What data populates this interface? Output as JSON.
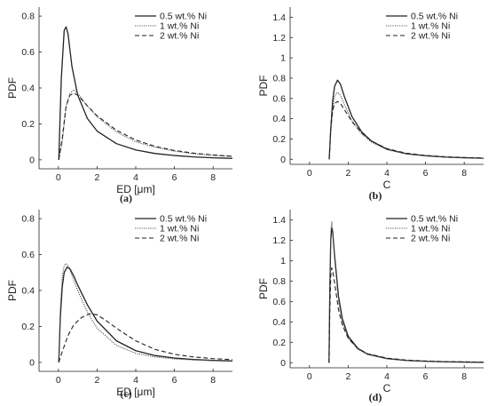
{
  "chart_data": [
    {
      "type": "line",
      "panel_label": "(a)",
      "xlabel": "ED [μm]",
      "ylabel": "PDF",
      "xlim": [
        -1,
        9
      ],
      "ylim": [
        -0.05,
        0.85
      ],
      "xticks": [
        0,
        2,
        4,
        6,
        8
      ],
      "yticks": [
        0,
        0.2,
        0.4,
        0.6,
        0.8
      ],
      "ytick_labels": [
        "0",
        "0.2",
        "0.4",
        "0.6",
        "0.8"
      ],
      "grid": false,
      "legend_position": "top-right",
      "series": [
        {
          "name": "0.5 wt.% Ni",
          "style": "solid",
          "x": [
            0.02,
            0.15,
            0.3,
            0.4,
            0.5,
            0.7,
            1.0,
            1.5,
            2,
            3,
            4,
            5,
            6,
            7,
            8,
            9
          ],
          "y": [
            0.0,
            0.45,
            0.72,
            0.74,
            0.7,
            0.52,
            0.36,
            0.23,
            0.16,
            0.09,
            0.055,
            0.035,
            0.024,
            0.016,
            0.011,
            0.008
          ]
        },
        {
          "name": "1 wt.% Ni",
          "style": "dotted",
          "x": [
            0.02,
            0.2,
            0.4,
            0.6,
            0.8,
            1.0,
            1.5,
            2,
            3,
            4,
            5,
            6,
            7,
            8,
            9
          ],
          "y": [
            0.0,
            0.1,
            0.3,
            0.37,
            0.39,
            0.37,
            0.3,
            0.24,
            0.155,
            0.1,
            0.07,
            0.048,
            0.034,
            0.025,
            0.018
          ]
        },
        {
          "name": "2 wt.% Ni",
          "style": "dashed",
          "x": [
            0.02,
            0.2,
            0.4,
            0.6,
            0.8,
            1.0,
            1.5,
            2,
            3,
            4,
            5,
            6,
            7,
            8,
            9
          ],
          "y": [
            0.0,
            0.12,
            0.3,
            0.36,
            0.37,
            0.36,
            0.3,
            0.245,
            0.165,
            0.11,
            0.075,
            0.052,
            0.037,
            0.027,
            0.02
          ]
        }
      ]
    },
    {
      "type": "line",
      "panel_label": "(b)",
      "xlabel": "C",
      "ylabel": "PDF",
      "xlim": [
        -1,
        9
      ],
      "ylim": [
        -0.05,
        1.5
      ],
      "xticks": [
        0,
        2,
        4,
        6,
        8
      ],
      "yticks": [
        0,
        0.2,
        0.4,
        0.6,
        0.8,
        1,
        1.2,
        1.4
      ],
      "ytick_labels": [
        "0",
        "0.2",
        "0.4",
        "0.6",
        "0.8",
        "1",
        "1.2",
        "1.4"
      ],
      "grid": false,
      "legend_position": "top-right",
      "series": [
        {
          "name": "0.5 wt.% Ni",
          "style": "solid",
          "x": [
            1.02,
            1.1,
            1.2,
            1.3,
            1.45,
            1.6,
            1.8,
            2.2,
            2.7,
            3.2,
            4,
            5,
            6,
            7,
            8,
            9
          ],
          "y": [
            0.0,
            0.3,
            0.58,
            0.72,
            0.78,
            0.74,
            0.62,
            0.42,
            0.27,
            0.18,
            0.1,
            0.055,
            0.035,
            0.022,
            0.015,
            0.01
          ]
        },
        {
          "name": "1 wt.% Ni",
          "style": "dotted",
          "x": [
            1.02,
            1.1,
            1.2,
            1.3,
            1.45,
            1.6,
            1.8,
            2.2,
            2.7,
            3.2,
            4,
            5,
            6,
            7,
            8,
            9
          ],
          "y": [
            0.0,
            0.28,
            0.5,
            0.62,
            0.66,
            0.63,
            0.54,
            0.38,
            0.25,
            0.17,
            0.095,
            0.052,
            0.033,
            0.021,
            0.014,
            0.01
          ]
        },
        {
          "name": "2 wt.% Ni",
          "style": "dashed",
          "x": [
            1.02,
            1.1,
            1.2,
            1.3,
            1.45,
            1.6,
            1.8,
            2.2,
            2.7,
            3.2,
            4,
            5,
            6,
            7,
            8,
            9
          ],
          "y": [
            0.0,
            0.3,
            0.48,
            0.55,
            0.57,
            0.55,
            0.49,
            0.37,
            0.26,
            0.18,
            0.105,
            0.06,
            0.038,
            0.025,
            0.017,
            0.012
          ]
        }
      ]
    },
    {
      "type": "line",
      "panel_label": "(c)",
      "xlabel": "ED [μm]",
      "ylabel": "PDF",
      "xlim": [
        -1,
        9
      ],
      "ylim": [
        -0.05,
        0.85
      ],
      "xticks": [
        0,
        2,
        4,
        6,
        8
      ],
      "yticks": [
        0,
        0.2,
        0.4,
        0.6,
        0.8
      ],
      "ytick_labels": [
        "0",
        "0.2",
        "0.4",
        "0.6",
        "0.8"
      ],
      "grid": false,
      "legend_position": "top-right",
      "series": [
        {
          "name": "0.5 wt.% Ni",
          "style": "solid",
          "x": [
            0.02,
            0.1,
            0.2,
            0.3,
            0.45,
            0.6,
            0.8,
            1.0,
            1.5,
            2,
            3,
            4,
            5,
            6,
            7,
            8,
            9
          ],
          "y": [
            0.0,
            0.25,
            0.42,
            0.5,
            0.53,
            0.52,
            0.48,
            0.43,
            0.32,
            0.23,
            0.12,
            0.065,
            0.038,
            0.024,
            0.016,
            0.011,
            0.008
          ]
        },
        {
          "name": "1 wt.% Ni",
          "style": "dotted",
          "x": [
            0.02,
            0.1,
            0.2,
            0.3,
            0.4,
            0.55,
            0.75,
            1.0,
            1.5,
            2,
            3,
            4,
            5,
            6,
            7,
            8,
            9
          ],
          "y": [
            0.0,
            0.3,
            0.48,
            0.54,
            0.55,
            0.53,
            0.47,
            0.4,
            0.28,
            0.19,
            0.095,
            0.05,
            0.03,
            0.019,
            0.013,
            0.009,
            0.006
          ]
        },
        {
          "name": "2 wt.% Ni",
          "style": "dashed",
          "x": [
            0.02,
            0.2,
            0.5,
            0.8,
            1.2,
            1.6,
            2.0,
            2.5,
            3,
            4,
            5,
            6,
            7,
            8,
            9
          ],
          "y": [
            0.0,
            0.06,
            0.15,
            0.21,
            0.25,
            0.27,
            0.265,
            0.23,
            0.19,
            0.12,
            0.072,
            0.045,
            0.03,
            0.021,
            0.015
          ]
        }
      ]
    },
    {
      "type": "line",
      "panel_label": "(d)",
      "xlabel": "C",
      "ylabel": "PDF",
      "xlim": [
        -1,
        9
      ],
      "ylim": [
        -0.05,
        1.5
      ],
      "xticks": [
        0,
        2,
        4,
        6,
        8
      ],
      "yticks": [
        0,
        0.2,
        0.4,
        0.6,
        0.8,
        1,
        1.2,
        1.4
      ],
      "ytick_labels": [
        "0",
        "0.2",
        "0.4",
        "0.6",
        "0.8",
        "1",
        "1.2",
        "1.4"
      ],
      "grid": false,
      "legend_position": "top-right",
      "series": [
        {
          "name": "0.5 wt.% Ni",
          "style": "solid",
          "x": [
            1.01,
            1.05,
            1.1,
            1.15,
            1.2,
            1.3,
            1.5,
            1.7,
            2.0,
            2.5,
            3,
            4,
            5,
            6,
            7,
            8,
            9
          ],
          "y": [
            0.0,
            0.7,
            1.2,
            1.32,
            1.28,
            1.05,
            0.65,
            0.43,
            0.26,
            0.14,
            0.085,
            0.04,
            0.022,
            0.014,
            0.009,
            0.006,
            0.004
          ]
        },
        {
          "name": "1 wt.% Ni",
          "style": "dotted",
          "x": [
            1.01,
            1.05,
            1.1,
            1.15,
            1.2,
            1.3,
            1.5,
            1.7,
            2.0,
            2.5,
            3,
            4,
            5,
            6,
            7,
            8,
            9
          ],
          "y": [
            0.0,
            0.75,
            1.28,
            1.38,
            1.3,
            1.02,
            0.6,
            0.4,
            0.24,
            0.13,
            0.08,
            0.038,
            0.021,
            0.013,
            0.008,
            0.005,
            0.004
          ]
        },
        {
          "name": "2 wt.% Ni",
          "style": "dashed",
          "x": [
            1.01,
            1.05,
            1.1,
            1.15,
            1.2,
            1.3,
            1.5,
            1.7,
            2.0,
            2.5,
            3,
            4,
            5,
            6,
            7,
            8,
            9
          ],
          "y": [
            0.0,
            0.5,
            0.85,
            0.93,
            0.9,
            0.78,
            0.52,
            0.37,
            0.24,
            0.14,
            0.088,
            0.045,
            0.026,
            0.017,
            0.011,
            0.008,
            0.006
          ]
        }
      ]
    }
  ]
}
